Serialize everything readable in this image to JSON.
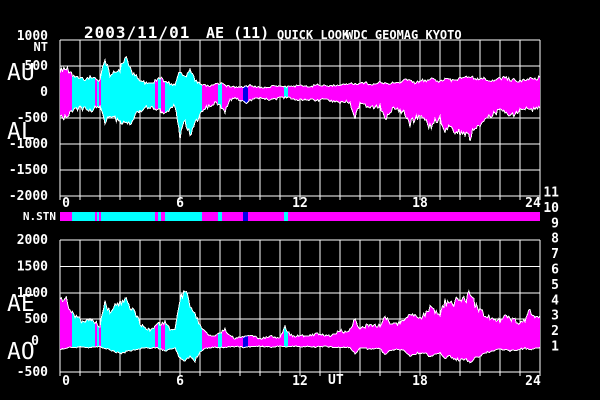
{
  "header": {
    "date": "2003/11/01",
    "index_title": "AE (11)",
    "quicklook": "QUICK LOOK",
    "source": "WDC GEOMAG KYOTO"
  },
  "colors": {
    "background": "#000000",
    "grid": "#FFFFFF",
    "text": "#FFFFFF",
    "envelope": "#FFFFFF",
    "station": {
      "11": "#00FFFF",
      "10": "#FF00FF",
      "9": "#0000E8",
      "8": "#FFFF00",
      "7": "#00C000",
      "6": "#FF0000",
      "5": "#C8C8C8",
      "4": "#787878",
      "3": "#008080",
      "2": "#800080",
      "1": "#000080"
    }
  },
  "chart_data": {
    "type": "area",
    "title": "AE (11) QUICK LOOK WDC GEOMAG KYOTO 2003/11/01",
    "unit_label": "NT",
    "x_unit_label": "UT",
    "station_bar_label": "N.STN",
    "x_start_hour": 0,
    "x_end_hour": 24,
    "x_step_hours": 0.25,
    "x_ticks": [
      0,
      6,
      12,
      18,
      24
    ],
    "legend_counts": [
      11,
      10,
      9,
      8,
      7,
      6,
      5,
      4,
      3,
      2,
      1
    ],
    "panels": [
      {
        "name": "AU-AL",
        "labels_big": [
          "AU",
          "AL"
        ],
        "ylim": [
          -2000,
          1000
        ],
        "yticks": [
          1000,
          500,
          0,
          -500,
          -1000,
          -1500,
          -2000
        ],
        "series": [
          {
            "name": "AU",
            "values": [
              400,
              480,
              380,
              300,
              270,
              240,
              280,
              250,
              230,
              650,
              320,
              380,
              430,
              680,
              440,
              320,
              220,
              180,
              160,
              210,
              260,
              210,
              160,
              130,
              420,
              280,
              460,
              220,
              160,
              130,
              110,
              140,
              160,
              130,
              110,
              95,
              85,
              105,
              125,
              105,
              90,
              85,
              105,
              115,
              100,
              95,
              105,
              115,
              125,
              105,
              115,
              125,
              135,
              120,
              110,
              125,
              145,
              155,
              165,
              150,
              165,
              175,
              155,
              165,
              185,
              170,
              165,
              185,
              205,
              225,
              205,
              185,
              205,
              225,
              245,
              225,
              205,
              255,
              225,
              210,
              255,
              285,
              305,
              255,
              225,
              255,
              235,
              205,
              255,
              275,
              245,
              225,
              205,
              230,
              260,
              240,
              280
            ]
          },
          {
            "name": "AL",
            "values": [
              -500,
              -480,
              -400,
              -350,
              -310,
              -330,
              -360,
              -310,
              -290,
              -560,
              -420,
              -520,
              -600,
              -560,
              -600,
              -430,
              -360,
              -310,
              -290,
              -310,
              -360,
              -420,
              -310,
              -260,
              -850,
              -520,
              -880,
              -600,
              -420,
              -310,
              -260,
              -210,
              -260,
              -360,
              -160,
              -130,
              -160,
              -210,
              -160,
              -130,
              -110,
              -130,
              -160,
              -140,
              -115,
              -105,
              -125,
              -145,
              -155,
              -135,
              -145,
              -165,
              -155,
              -145,
              -165,
              -185,
              -205,
              -185,
              -210,
              -480,
              -230,
              -260,
              -310,
              -290,
              -260,
              -560,
              -360,
              -310,
              -360,
              -410,
              -610,
              -510,
              -460,
              -510,
              -670,
              -560,
              -510,
              -700,
              -650,
              -750,
              -800,
              -780,
              -860,
              -700,
              -600,
              -520,
              -460,
              -410,
              -360,
              -410,
              -460,
              -410,
              -360,
              -310,
              -360,
              -330,
              -310
            ]
          }
        ]
      },
      {
        "name": "AE-AO",
        "labels_big": [
          "AE",
          "AO"
        ],
        "ylim": [
          -500,
          2000
        ],
        "yticks": [
          2000,
          1500,
          1000,
          500,
          0,
          -500
        ],
        "series": [
          {
            "name": "AE",
            "values": [
              820,
              900,
              700,
              560,
              480,
              420,
              500,
              450,
              350,
              870,
              600,
              750,
              830,
              870,
              760,
              600,
              420,
              330,
              300,
              350,
              420,
              440,
              320,
              280,
              900,
              1000,
              800,
              620,
              380,
              250,
              200,
              180,
              250,
              300,
              180,
              140,
              150,
              180,
              200,
              160,
              130,
              140,
              180,
              160,
              140,
              350,
              200,
              180,
              200,
              170,
              190,
              210,
              230,
              200,
              190,
              230,
              280,
              260,
              300,
              500,
              320,
              360,
              400,
              380,
              360,
              560,
              420,
              400,
              450,
              520,
              650,
              560,
              520,
              580,
              720,
              620,
              580,
              840,
              760,
              830,
              900,
              860,
              1000,
              780,
              650,
              600,
              540,
              480,
              470,
              560,
              520,
              480,
              420,
              480,
              680,
              520,
              560
            ]
          },
          {
            "name": "AO",
            "values": [
              -80,
              -50,
              -30,
              -40,
              -20,
              -30,
              -40,
              -30,
              -20,
              -60,
              -80,
              -120,
              -150,
              -120,
              -100,
              -80,
              -60,
              -40,
              -50,
              -40,
              -60,
              -100,
              -60,
              -40,
              -250,
              -300,
              -200,
              -280,
              -120,
              -60,
              -40,
              -30,
              -40,
              -30,
              -20,
              -15,
              -20,
              -40,
              -20,
              -15,
              -10,
              -20,
              -30,
              -20,
              -10,
              -30,
              -20,
              -15,
              -20,
              -15,
              -20,
              -25,
              -20,
              -15,
              -25,
              -30,
              -40,
              -30,
              -40,
              -150,
              -40,
              -50,
              -70,
              -60,
              -50,
              -180,
              -90,
              -70,
              -80,
              -100,
              -200,
              -160,
              -130,
              -150,
              -210,
              -170,
              -150,
              -230,
              -210,
              -260,
              -280,
              -250,
              -320,
              -230,
              -190,
              -140,
              -110,
              -100,
              -60,
              -80,
              -100,
              -90,
              -70,
              -50,
              -80,
              -60,
              -30
            ]
          }
        ]
      }
    ],
    "station_segments": [
      {
        "start": 0,
        "end": 0.6,
        "n": 10
      },
      {
        "start": 0.6,
        "end": 1.75,
        "n": 11
      },
      {
        "start": 1.75,
        "end": 1.85,
        "n": 10
      },
      {
        "start": 1.85,
        "end": 1.95,
        "n": 11
      },
      {
        "start": 1.95,
        "end": 2.05,
        "n": 10
      },
      {
        "start": 2.05,
        "end": 4.75,
        "n": 11
      },
      {
        "start": 4.75,
        "end": 4.9,
        "n": 10
      },
      {
        "start": 4.9,
        "end": 5.05,
        "n": 11
      },
      {
        "start": 5.05,
        "end": 5.25,
        "n": 10
      },
      {
        "start": 5.25,
        "end": 7.1,
        "n": 11
      },
      {
        "start": 7.1,
        "end": 7.9,
        "n": 10
      },
      {
        "start": 7.9,
        "end": 8.1,
        "n": 11
      },
      {
        "start": 8.1,
        "end": 9.15,
        "n": 10
      },
      {
        "start": 9.15,
        "end": 9.4,
        "n": 9
      },
      {
        "start": 9.4,
        "end": 11.2,
        "n": 10
      },
      {
        "start": 11.2,
        "end": 11.4,
        "n": 11
      },
      {
        "start": 11.4,
        "end": 24,
        "n": 10
      }
    ]
  }
}
